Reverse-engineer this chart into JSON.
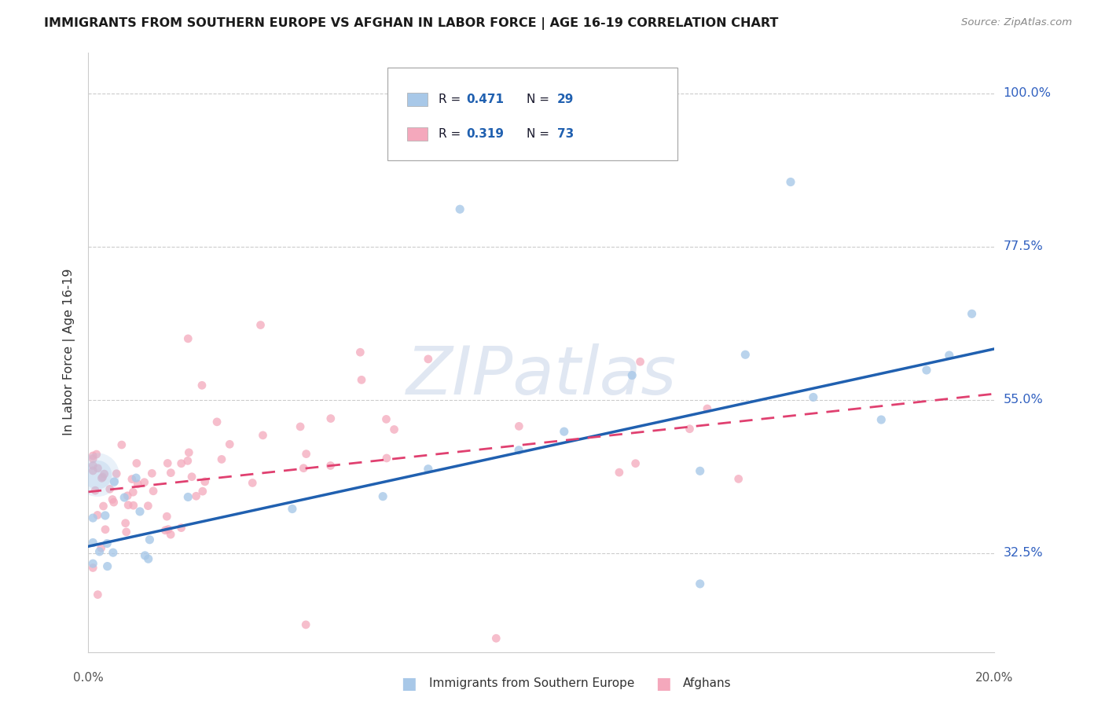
{
  "title": "IMMIGRANTS FROM SOUTHERN EUROPE VS AFGHAN IN LABOR FORCE | AGE 16-19 CORRELATION CHART",
  "source": "Source: ZipAtlas.com",
  "ylabel": "In Labor Force | Age 16-19",
  "yticks": [
    0.325,
    0.55,
    0.775,
    1.0
  ],
  "ytick_labels": [
    "32.5%",
    "55.0%",
    "77.5%",
    "100.0%"
  ],
  "xmin": 0.0,
  "xmax": 0.2,
  "ymin": 0.18,
  "ymax": 1.06,
  "blue_color": "#a8c8e8",
  "pink_color": "#f4a8bc",
  "blue_line_color": "#2060b0",
  "pink_line_color": "#e04070",
  "blue_r": "0.471",
  "blue_n": "29",
  "pink_r": "0.319",
  "pink_n": "73",
  "blue_intercept": 0.335,
  "blue_slope": 1.45,
  "pink_intercept": 0.415,
  "pink_slope": 0.72,
  "legend_label_color": "#1a1a2e",
  "legend_value_color": "#2060b0",
  "watermark_color": "#c8d4e8",
  "axis_color": "#cccccc",
  "title_color": "#1a1a1a",
  "source_color": "#888888",
  "ylabel_color": "#333333",
  "xtick_color": "#555555",
  "ytick_right_color": "#3060c0"
}
